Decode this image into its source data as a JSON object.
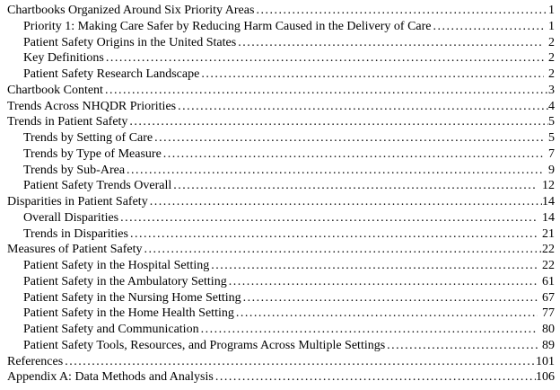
{
  "document": {
    "kind": "table-of-contents",
    "text_color": "#000000",
    "background_color": "#ffffff",
    "entries": [
      {
        "label": "Chartbooks Organized Around Six Priority Areas",
        "page": "1",
        "level": 0
      },
      {
        "label": "Priority 1: Making Care Safer by Reducing Harm Caused in the Delivery of Care",
        "page": "1",
        "level": 1
      },
      {
        "label": "Patient Safety Origins in the United States",
        "page": "2",
        "level": 1
      },
      {
        "label": "Key Definitions",
        "page": "2",
        "level": 1
      },
      {
        "label": "Patient Safety Research Landscape",
        "page": "2",
        "level": 1
      },
      {
        "label": "Chartbook Content",
        "page": "3",
        "level": 0
      },
      {
        "label": "Trends Across NHQDR Priorities",
        "page": "4",
        "level": 0
      },
      {
        "label": "Trends in Patient Safety",
        "page": "5",
        "level": 0
      },
      {
        "label": "Trends by Setting of Care",
        "page": "5",
        "level": 1
      },
      {
        "label": "Trends by Type of Measure",
        "page": "7",
        "level": 1
      },
      {
        "label": "Trends by Sub-Area",
        "page": "9",
        "level": 1
      },
      {
        "label": "Patient Safety Trends Overall",
        "page": "12",
        "level": 1
      },
      {
        "label": "Disparities in Patient Safety",
        "page": "14",
        "level": 0
      },
      {
        "label": "Overall Disparities",
        "page": "14",
        "level": 1
      },
      {
        "label": "Trends in Disparities",
        "page": "21",
        "level": 1
      },
      {
        "label": "Measures of Patient Safety",
        "page": "22",
        "level": 0
      },
      {
        "label": "Patient Safety in the Hospital Setting",
        "page": "22",
        "level": 1
      },
      {
        "label": "Patient Safety in the Ambulatory Setting",
        "page": "61",
        "level": 1
      },
      {
        "label": "Patient Safety in the Nursing Home Setting",
        "page": "67",
        "level": 1
      },
      {
        "label": "Patient Safety in the Home Health Setting",
        "page": "77",
        "level": 1
      },
      {
        "label": "Patient Safety and Communication",
        "page": "80",
        "level": 1
      },
      {
        "label": "Patient Safety Tools, Resources, and Programs Across Multiple Settings",
        "page": "89",
        "level": 1
      },
      {
        "label": "References",
        "page": "101",
        "level": 0
      },
      {
        "label": "Appendix A: Data Methods and Analysis",
        "page": "106",
        "level": 0
      }
    ]
  }
}
